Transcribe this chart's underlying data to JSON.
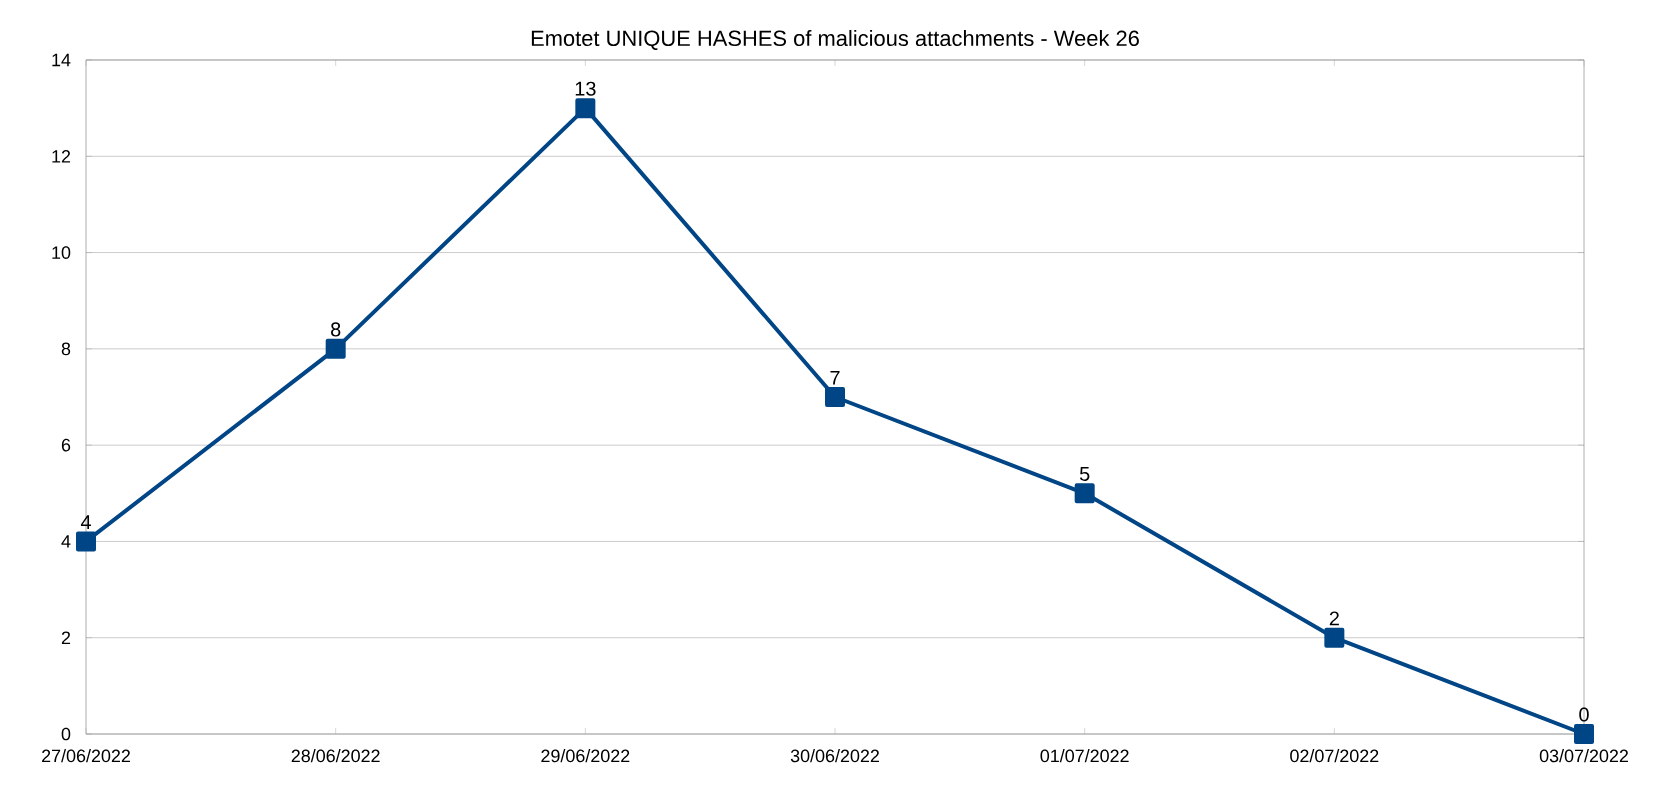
{
  "chart_data": {
    "type": "line",
    "title": "Emotet UNIQUE HASHES of malicious attachments - Week 26",
    "categories": [
      "27/06/2022",
      "28/06/2022",
      "29/06/2022",
      "30/06/2022",
      "01/07/2022",
      "02/07/2022",
      "03/07/2022"
    ],
    "values": [
      4,
      8,
      13,
      7,
      5,
      2,
      0
    ],
    "color": "#004586",
    "marker": "square",
    "line_style": "solid",
    "ylim": [
      0,
      14
    ],
    "yticks": [
      0,
      2,
      4,
      6,
      8,
      10,
      12,
      14
    ],
    "grid": "y",
    "data_labels": true
  }
}
